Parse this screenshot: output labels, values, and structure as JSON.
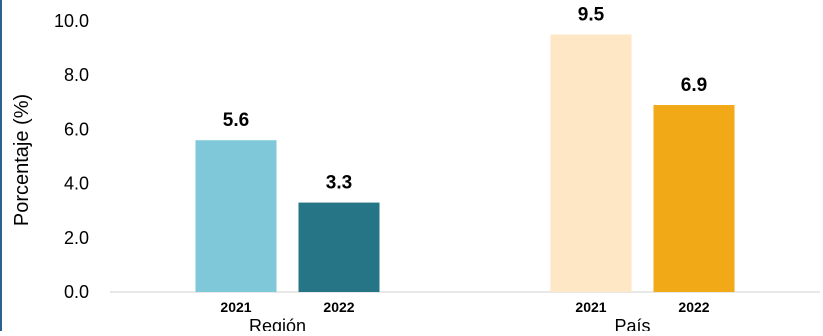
{
  "chart_data": {
    "type": "bar",
    "title": "",
    "xlabel": "",
    "ylabel": "Porcentaje (%)",
    "ylim": [
      0,
      10
    ],
    "yticks": [
      "0.0",
      "2.0",
      "4.0",
      "6.0",
      "8.0",
      "10.0"
    ],
    "ytick_values": [
      0,
      2,
      4,
      6,
      8,
      10
    ],
    "grid": false,
    "groups": [
      {
        "name": "Región",
        "bars": [
          {
            "label": "2021",
            "value": 5.6,
            "value_text": "5.6",
            "color": "#7EC8D9"
          },
          {
            "label": "2022",
            "value": 3.3,
            "value_text": "3.3",
            "color": "#267587"
          }
        ]
      },
      {
        "name": "País",
        "bars": [
          {
            "label": "2021",
            "value": 9.5,
            "value_text": "9.5",
            "color": "#FDE7C4"
          },
          {
            "label": "2022",
            "value": 6.9,
            "value_text": "6.9",
            "color": "#F2A917"
          }
        ]
      }
    ]
  }
}
